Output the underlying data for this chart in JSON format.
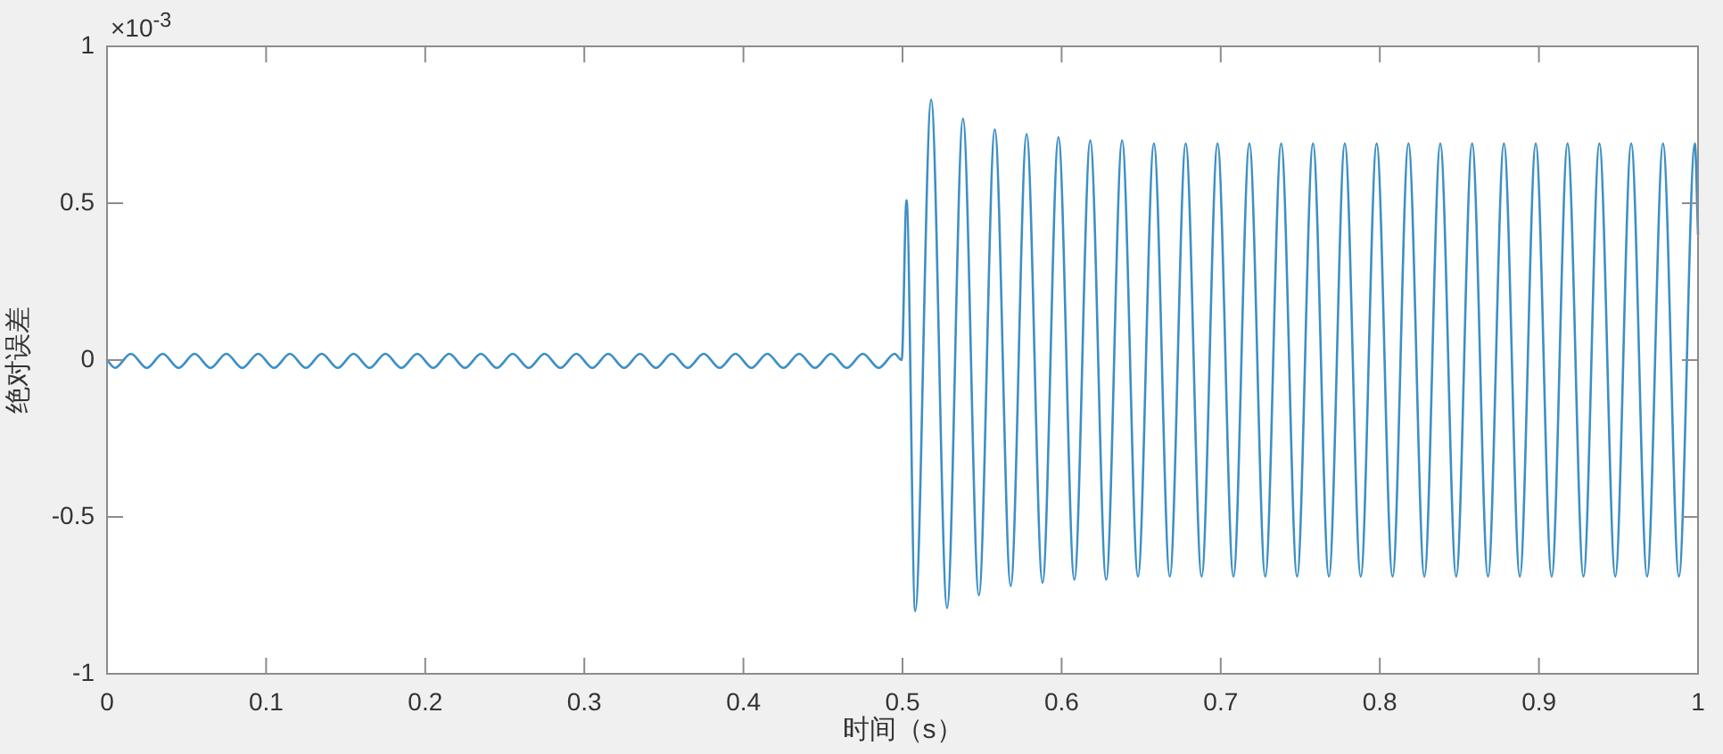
{
  "chart_data": {
    "type": "line",
    "xlabel": "时间（s）",
    "ylabel": "绝对误差",
    "annotations": [
      "×10$^{-3}$"
    ],
    "xlim": [
      0,
      1
    ],
    "xticks": [
      0,
      0.1,
      0.2,
      0.3,
      0.4,
      0.5,
      0.6,
      0.7,
      0.8,
      0.9,
      1
    ],
    "ylim": [
      -1,
      1
    ],
    "yticks": [
      -1,
      -0.5,
      0,
      0.5,
      1
    ],
    "color": "#3d8fc6",
    "x": [
      0,
      0.005,
      0.015,
      0.025,
      0.035,
      0.045,
      0.055,
      0.065,
      0.075,
      0.085,
      0.095,
      0.105,
      0.115,
      0.125,
      0.135,
      0.145,
      0.155,
      0.165,
      0.175,
      0.185,
      0.195,
      0.205,
      0.215,
      0.225,
      0.235,
      0.245,
      0.255,
      0.265,
      0.275,
      0.285,
      0.295,
      0.305,
      0.315,
      0.325,
      0.335,
      0.345,
      0.355,
      0.365,
      0.375,
      0.385,
      0.395,
      0.405,
      0.415,
      0.425,
      0.435,
      0.445,
      0.455,
      0.465,
      0.475,
      0.485,
      0.495,
      0.4995,
      0.5025,
      0.508,
      0.518,
      0.528,
      0.538,
      0.548,
      0.558,
      0.568,
      0.578,
      0.588,
      0.598,
      0.608,
      0.618,
      0.628,
      0.638,
      0.648,
      0.658,
      0.668,
      0.678,
      0.688,
      0.698,
      0.708,
      0.718,
      0.728,
      0.738,
      0.748,
      0.758,
      0.768,
      0.778,
      0.788,
      0.798,
      0.808,
      0.818,
      0.828,
      0.838,
      0.848,
      0.858,
      0.868,
      0.878,
      0.888,
      0.898,
      0.908,
      0.918,
      0.928,
      0.938,
      0.948,
      0.958,
      0.968,
      0.978,
      0.988,
      0.998,
      1
    ],
    "values": [
      0,
      -0.025,
      0.02,
      -0.025,
      0.02,
      -0.025,
      0.02,
      -0.025,
      0.02,
      -0.025,
      0.02,
      -0.025,
      0.02,
      -0.025,
      0.02,
      -0.025,
      0.02,
      -0.025,
      0.02,
      -0.025,
      0.02,
      -0.025,
      0.02,
      -0.025,
      0.02,
      -0.025,
      0.02,
      -0.025,
      0.02,
      -0.025,
      0.02,
      -0.025,
      0.02,
      -0.025,
      0.02,
      -0.025,
      0.02,
      -0.025,
      0.02,
      -0.025,
      0.02,
      -0.025,
      0.02,
      -0.025,
      0.02,
      -0.025,
      0.02,
      -0.025,
      0.02,
      -0.025,
      0.02,
      0,
      0.51,
      -0.8,
      0.83,
      -0.79,
      0.77,
      -0.75,
      0.735,
      -0.72,
      0.72,
      -0.71,
      0.71,
      -0.7,
      0.7,
      -0.7,
      0.7,
      -0.69,
      0.69,
      -0.69,
      0.69,
      -0.69,
      0.69,
      -0.69,
      0.69,
      -0.69,
      0.69,
      -0.69,
      0.69,
      -0.69,
      0.69,
      -0.69,
      0.69,
      -0.69,
      0.69,
      -0.69,
      0.69,
      -0.69,
      0.69,
      -0.69,
      0.69,
      -0.69,
      0.69,
      -0.69,
      0.69,
      -0.69,
      0.69,
      -0.69,
      0.69,
      -0.69,
      0.69,
      -0.69,
      0.69,
      0.4
    ]
  }
}
